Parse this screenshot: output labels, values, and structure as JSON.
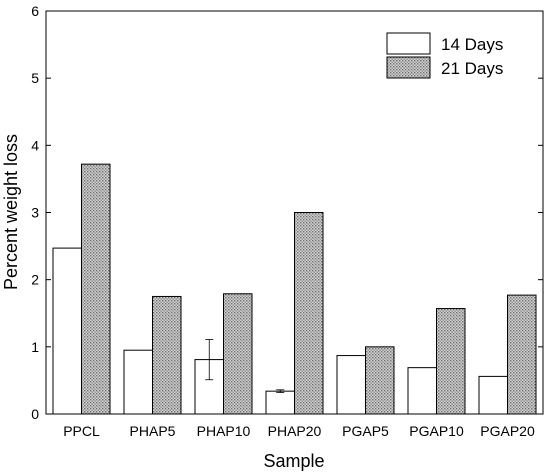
{
  "chart_data": {
    "type": "bar",
    "xlabel": "Sample",
    "ylabel": "Percent weight loss",
    "ylim": [
      0,
      6
    ],
    "yticks": [
      0,
      1,
      2,
      3,
      4,
      5,
      6
    ],
    "categories": [
      "PPCL",
      "PHAP5",
      "PHAP10",
      "PHAP20",
      "PGAP5",
      "PGAP10",
      "PGAP20"
    ],
    "series": [
      {
        "name": "14 Days",
        "fill": "white",
        "values": [
          2.47,
          0.95,
          0.81,
          0.34,
          0.87,
          0.69,
          0.56
        ],
        "error": [
          null,
          null,
          0.3,
          0.02,
          null,
          null,
          null
        ]
      },
      {
        "name": "21 Days",
        "fill": "dotted-gray",
        "values": [
          3.72,
          1.75,
          1.79,
          3.0,
          1.0,
          1.57,
          1.77
        ]
      }
    ],
    "legend_position": "top-right",
    "grid": false
  }
}
